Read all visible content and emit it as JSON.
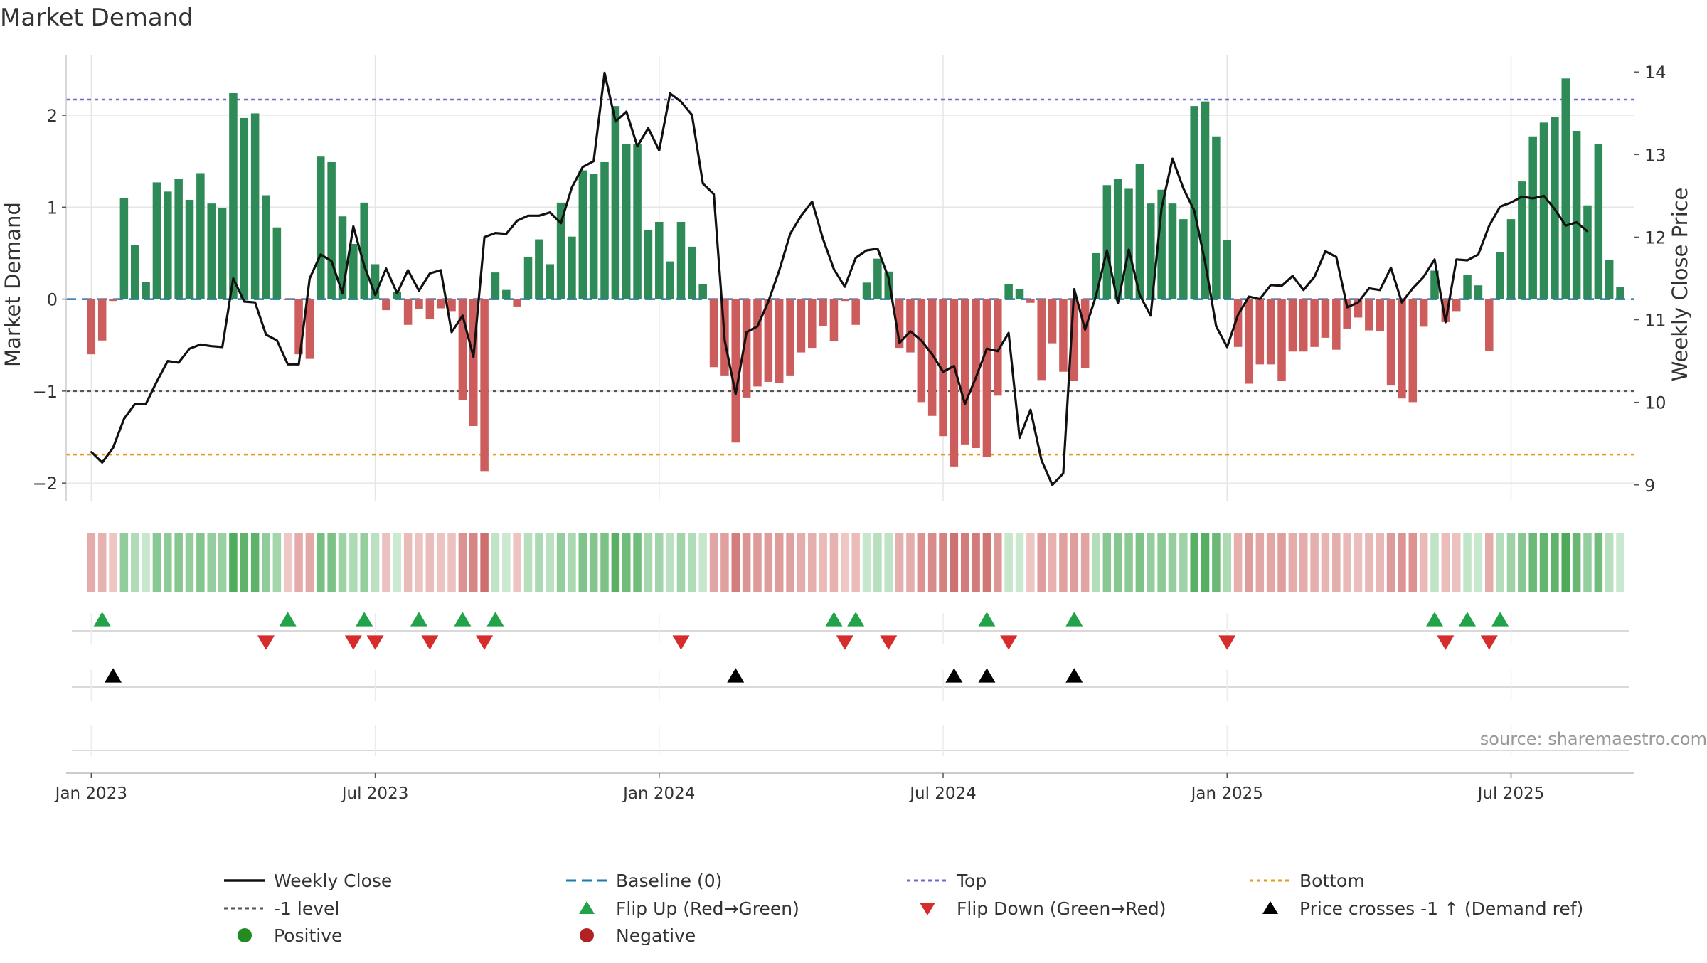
{
  "chart_data": {
    "type": "bar",
    "title": "Market Demand",
    "ylabel": "Market Demand",
    "y2label": "Weekly Close Price",
    "source": "source: sharemaestro.com",
    "ylim": [
      -2.2,
      2.65
    ],
    "y2lim": [
      8.8,
      14.2
    ],
    "yticks": [
      -2,
      -1,
      0,
      1,
      2
    ],
    "yticklabels": [
      "−2",
      "−1",
      "0",
      "1",
      "2"
    ],
    "y2ticks": [
      9,
      10,
      11,
      12,
      13,
      14
    ],
    "xlim": [
      -2.3,
      141.3
    ],
    "xticks": [
      {
        "week": 0,
        "label": "Jan 2023"
      },
      {
        "week": 26,
        "label": "Jul 2023"
      },
      {
        "week": 52,
        "label": "Jan 2024"
      },
      {
        "week": 78,
        "label": "Jul 2024"
      },
      {
        "week": 104,
        "label": "Jan 2025"
      },
      {
        "week": 130,
        "label": "Jul 2025"
      }
    ],
    "reference_lines": {
      "top": 2.17,
      "minus_one": -1,
      "bottom": -1.69,
      "baseline": 0
    },
    "demand": [
      -0.6,
      -0.45,
      -0.02,
      1.1,
      0.59,
      0.19,
      1.27,
      1.17,
      1.31,
      1.08,
      1.37,
      1.04,
      0.99,
      2.24,
      1.97,
      2.02,
      1.13,
      0.78,
      -0.01,
      -0.6,
      -0.65,
      1.55,
      1.49,
      0.9,
      0.6,
      1.05,
      0.38,
      -0.12,
      0.08,
      -0.28,
      -0.11,
      -0.22,
      -0.1,
      -0.13,
      -1.1,
      -1.38,
      -1.87,
      0.29,
      0.1,
      -0.08,
      0.46,
      0.65,
      0.38,
      1.05,
      0.68,
      1.4,
      1.36,
      1.49,
      2.1,
      1.69,
      1.69,
      0.75,
      0.84,
      0.41,
      0.84,
      0.57,
      0.16,
      -0.74,
      -0.83,
      -1.56,
      -1.07,
      -0.95,
      -0.9,
      -0.91,
      -0.83,
      -0.58,
      -0.53,
      -0.29,
      -0.46,
      -0.02,
      -0.28,
      0.18,
      0.44,
      0.3,
      -0.53,
      -0.58,
      -1.12,
      -1.27,
      -1.49,
      -1.82,
      -1.58,
      -1.62,
      -1.72,
      -1.05,
      0.16,
      0.11,
      -0.04,
      -0.88,
      -0.48,
      -0.79,
      -0.89,
      -0.75,
      0.5,
      1.24,
      1.31,
      1.2,
      1.47,
      1.04,
      1.19,
      1.04,
      0.87,
      2.1,
      2.15,
      1.77,
      0.64,
      -0.52,
      -0.92,
      -0.71,
      -0.71,
      -0.89,
      -0.57,
      -0.57,
      -0.52,
      -0.42,
      -0.55,
      -0.32,
      -0.2,
      -0.34,
      -0.35,
      -0.94,
      -1.08,
      -1.12,
      -0.3,
      0.31,
      -0.25,
      -0.13,
      0.26,
      0.15,
      -0.56,
      0.51,
      0.87,
      1.28,
      1.77,
      1.92,
      1.98,
      2.4,
      1.83,
      1.02,
      1.69,
      0.43,
      0.13
    ],
    "weekly_close": [
      9.4,
      9.27,
      9.45,
      9.8,
      9.98,
      9.98,
      10.25,
      10.5,
      10.48,
      10.65,
      10.7,
      10.68,
      10.67,
      11.5,
      11.22,
      11.21,
      10.82,
      10.75,
      10.46,
      10.46,
      11.5,
      11.79,
      11.71,
      11.32,
      12.13,
      11.65,
      11.3,
      11.62,
      11.32,
      11.6,
      11.35,
      11.56,
      11.6,
      10.85,
      11.05,
      10.55,
      12,
      12.05,
      12.04,
      12.2,
      12.26,
      12.26,
      12.3,
      12.17,
      12.6,
      12.85,
      12.92,
      13.99,
      13.4,
      13.52,
      13.1,
      13.32,
      13.05,
      13.74,
      13.64,
      13.48,
      12.65,
      12.52,
      10.75,
      10.1,
      10.85,
      10.92,
      11.22,
      11.6,
      12.04,
      12.26,
      12.43,
      11.98,
      11.61,
      11.4,
      11.75,
      11.84,
      11.86,
      11.51,
      10.72,
      10.86,
      10.75,
      10.58,
      10.37,
      10.44,
      9.98,
      10.3,
      10.65,
      10.62,
      10.84,
      9.57,
      9.91,
      9.3,
      9.0,
      9.14,
      11.37,
      10.88,
      11.29,
      11.84,
      11.2,
      11.85,
      11.3,
      11.05,
      12.35,
      12.95,
      12.59,
      12.32,
      11.69,
      10.92,
      10.67,
      11.06,
      11.28,
      11.25,
      11.42,
      11.41,
      11.53,
      11.36,
      11.52,
      11.83,
      11.76,
      11.15,
      11.21,
      11.38,
      11.36,
      11.63,
      11.21,
      11.38,
      11.52,
      11.73,
      10.97,
      11.73,
      11.72,
      11.79,
      12.14,
      12.37,
      12.42,
      12.49,
      12.47,
      12.5,
      12.34,
      12.14,
      12.18,
      12.07
    ],
    "flip_up_weeks": [
      1,
      18,
      25,
      30,
      34,
      37,
      68,
      70,
      82,
      90,
      123,
      126,
      129
    ],
    "flip_down_weeks": [
      16,
      24,
      26,
      31,
      36,
      54,
      69,
      73,
      84,
      104,
      124,
      128
    ],
    "price_cross_weeks": [
      2,
      59,
      79,
      82,
      90
    ],
    "legend": {
      "weekly_close": "Weekly Close",
      "baseline": "Baseline (0)",
      "top": "Top",
      "bottom": "Bottom",
      "minus_one": "-1 level",
      "flip_up": "Flip Up (Red→Green)",
      "flip_down": "Flip Down (Green→Red)",
      "price_cross": "Price crosses -1 ↑ (Demand ref)",
      "positive": "Positive",
      "negative": "Negative"
    },
    "colors": {
      "positive_bar": "#2e8b57",
      "negative_bar": "#cd5c5c",
      "close_line": "#111111",
      "baseline": "#1f77b4",
      "top": "#6a6ad0",
      "minus_one": "#555555",
      "bottom": "#e69a1a",
      "flip_up": "#22a34a",
      "flip_down": "#d62c2c",
      "price_cross": "#000000",
      "positive_dot": "#228b22",
      "negative_dot": "#b22222",
      "grid": "#e6e6e6",
      "axis": "#cccccc"
    }
  }
}
